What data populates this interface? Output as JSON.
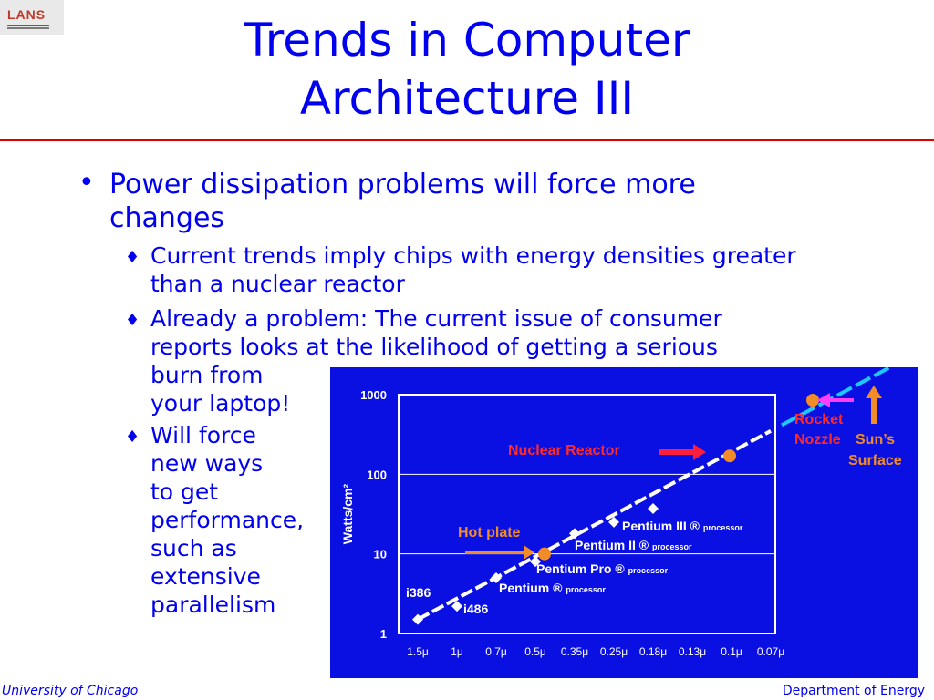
{
  "slide": {
    "logo_text": "LANS",
    "title_line1": "Trends in Computer",
    "title_line2": "Architecture III",
    "bullet_main": "Power dissipation problems will force more changes",
    "sub1": "Current trends imply chips with energy densities greater than a nuclear reactor",
    "sub2_line1": "Already a problem: The current issue of consumer",
    "sub2_line2": "reports looks at the likelihood of getting a serious",
    "sub2_line3": "burn from",
    "sub2_line4": "your laptop!",
    "sub3_lines": [
      "Will force",
      "new ways",
      "to get",
      "performance,",
      "such as",
      "extensive",
      "parallelism"
    ],
    "footer_left": "University of Chicago",
    "footer_right": "Department of Energy"
  },
  "colors": {
    "title": "#0000ee",
    "rule": "#e00000",
    "chart_bg": "#0a10e2",
    "trend_line": "#ffffff",
    "extension_line": "#1ec8ff",
    "orange": "#f28c28",
    "red_arrow": "#ff1e3c",
    "magenta_arrow": "#ff3cff",
    "callout_red": "#ff2a2a"
  },
  "chart_data": {
    "type": "scatter",
    "ylabel": "Watts/cm²",
    "y_scale": "log",
    "ylim": [
      1,
      1000
    ],
    "y_ticks": [
      "1",
      "10",
      "100",
      "1000"
    ],
    "x_ticks": [
      "1.5μ",
      "1μ",
      "0.7μ",
      "0.5μ",
      "0.35μ",
      "0.25μ",
      "0.18μ",
      "0.13μ",
      "0.1μ",
      "0.07μ"
    ],
    "grid": "horizontal at 10 and 100",
    "processors": [
      {
        "label": "i386",
        "x": "1.5μ",
        "y": 1.5
      },
      {
        "label": "i486",
        "x": "1μ",
        "y": 2.2
      },
      {
        "label": "Pentium ®",
        "sub": "processor",
        "x": "0.7μ",
        "y": 5
      },
      {
        "label": "Pentium Pro ®",
        "sub": "processor",
        "x": "0.5μ",
        "y": 8
      },
      {
        "label": "Pentium II ®",
        "sub": "processor",
        "x": "0.35μ",
        "y": 18
      },
      {
        "label": "Pentium III ®",
        "sub": "processor",
        "x": "0.25μ",
        "y": 25
      },
      {
        "label": "",
        "x": "0.18μ",
        "y": 37
      }
    ],
    "references": [
      {
        "label": "Hot plate",
        "x": "0.5μ",
        "y": 10
      },
      {
        "label": "Nuclear Reactor",
        "x": "0.1μ",
        "y": 170
      },
      {
        "label": "Rocket Nozzle",
        "x": "beyond 0.07μ",
        "y": 1000
      },
      {
        "label": "Sun’s Surface",
        "x": "beyond 0.07μ",
        "y": ">1000"
      }
    ],
    "trend": {
      "from": {
        "x": "1.5μ",
        "y": 1.5
      },
      "to": {
        "x": "0.07μ",
        "y": 350
      }
    }
  }
}
